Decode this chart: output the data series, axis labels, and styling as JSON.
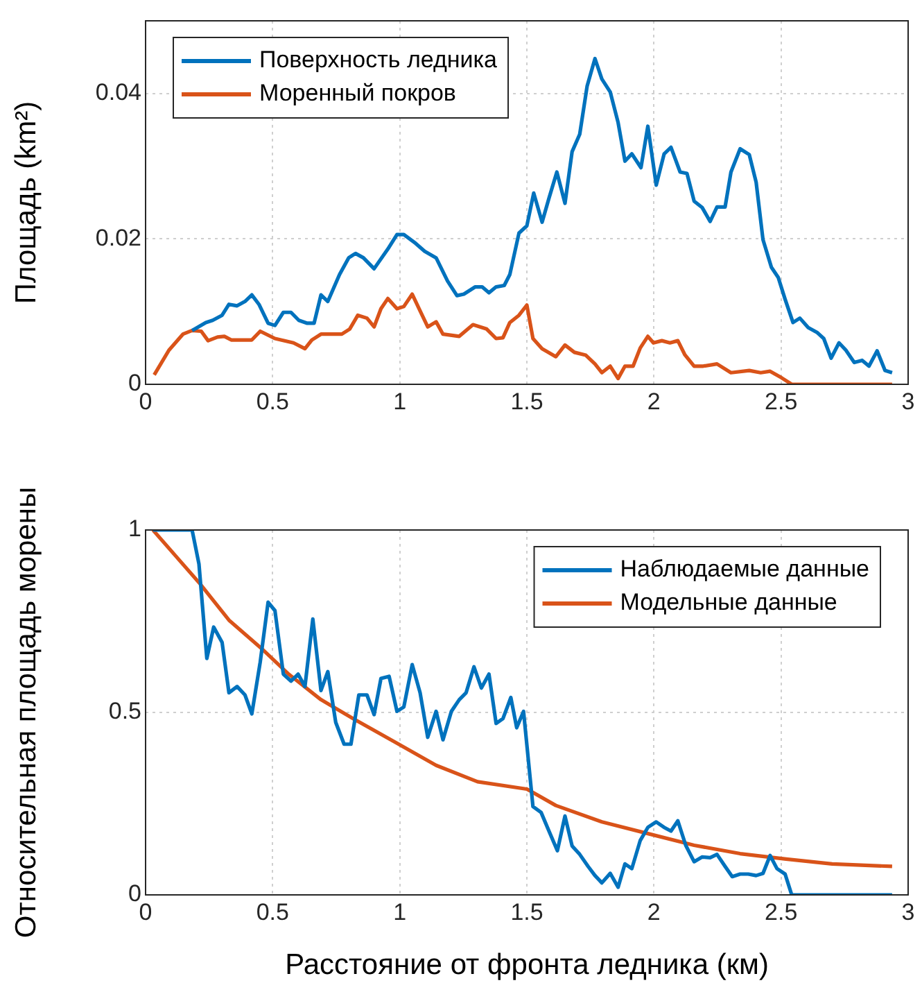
{
  "chart_data": [
    {
      "type": "line",
      "ylabel": "Площадь (km²)",
      "xlim": [
        0,
        3
      ],
      "xticks": [
        0,
        0.5,
        1,
        1.5,
        2,
        2.5,
        3
      ],
      "ylim": [
        0,
        0.05
      ],
      "yticks": [
        0,
        0.02,
        0.04
      ],
      "grid": true,
      "legend": "top left",
      "series": [
        {
          "name": "Поверхность ледника",
          "color": "#0072bd",
          "x": [
            0.183,
            0.237,
            0.264,
            0.301,
            0.328,
            0.36,
            0.391,
            0.418,
            0.446,
            0.482,
            0.509,
            0.542,
            0.572,
            0.603,
            0.636,
            0.663,
            0.69,
            0.717,
            0.763,
            0.799,
            0.826,
            0.857,
            0.899,
            0.953,
            0.989,
            1.016,
            1.062,
            1.098,
            1.143,
            1.188,
            1.225,
            1.252,
            1.297,
            1.324,
            1.351,
            1.379,
            1.411,
            1.433,
            1.469,
            1.5,
            1.527,
            1.56,
            1.587,
            1.618,
            1.65,
            1.678,
            1.708,
            1.737,
            1.768,
            1.795,
            1.828,
            1.859,
            1.886,
            1.913,
            1.949,
            1.976,
            2.009,
            2.04,
            2.067,
            2.103,
            2.13,
            2.158,
            2.19,
            2.221,
            2.248,
            2.28,
            2.303,
            2.339,
            2.375,
            2.402,
            2.429,
            2.462,
            2.489,
            2.516,
            2.547,
            2.574,
            2.607,
            2.643,
            2.668,
            2.697,
            2.728,
            2.755,
            2.788,
            2.819,
            2.846,
            2.878,
            2.909,
            2.937
          ],
          "values": [
            0.0074,
            0.0085,
            0.0088,
            0.0095,
            0.011,
            0.0108,
            0.0114,
            0.0123,
            0.011,
            0.0084,
            0.0081,
            0.0099,
            0.0099,
            0.0088,
            0.0084,
            0.0084,
            0.0123,
            0.0114,
            0.0151,
            0.0174,
            0.018,
            0.0174,
            0.0159,
            0.0186,
            0.0206,
            0.0206,
            0.0194,
            0.0183,
            0.0174,
            0.0142,
            0.0122,
            0.0124,
            0.0134,
            0.0134,
            0.0126,
            0.0134,
            0.0136,
            0.0151,
            0.0208,
            0.0218,
            0.0263,
            0.0223,
            0.0256,
            0.0292,
            0.0249,
            0.032,
            0.0344,
            0.041,
            0.0448,
            0.042,
            0.0402,
            0.036,
            0.0307,
            0.0317,
            0.0298,
            0.0355,
            0.0274,
            0.0317,
            0.0326,
            0.0292,
            0.029,
            0.0252,
            0.0243,
            0.0224,
            0.0244,
            0.0244,
            0.0292,
            0.0324,
            0.0316,
            0.0278,
            0.0199,
            0.0161,
            0.0147,
            0.0117,
            0.0085,
            0.0091,
            0.0078,
            0.0071,
            0.0063,
            0.0036,
            0.0057,
            0.0047,
            0.003,
            0.0033,
            0.0025,
            0.0046,
            0.0019,
            0.0016
          ]
        },
        {
          "name": "Моренный покров",
          "color": "#d95319",
          "x": [
            0.034,
            0.092,
            0.147,
            0.183,
            0.219,
            0.246,
            0.283,
            0.31,
            0.337,
            0.418,
            0.451,
            0.509,
            0.582,
            0.627,
            0.654,
            0.69,
            0.772,
            0.803,
            0.835,
            0.871,
            0.899,
            0.926,
            0.953,
            0.989,
            1.016,
            1.049,
            1.08,
            1.11,
            1.143,
            1.17,
            1.234,
            1.288,
            1.342,
            1.379,
            1.406,
            1.433,
            1.469,
            1.5,
            1.524,
            1.56,
            1.614,
            1.65,
            1.687,
            1.732,
            1.768,
            1.795,
            1.828,
            1.859,
            1.886,
            1.918,
            1.946,
            1.976,
            1.998,
            2.031,
            2.063,
            2.094,
            2.121,
            2.158,
            2.194,
            2.248,
            2.303,
            2.375,
            2.42,
            2.457,
            2.502,
            2.542,
            2.937
          ],
          "values": [
            0.0013,
            0.0047,
            0.0069,
            0.0074,
            0.0073,
            0.006,
            0.0065,
            0.0066,
            0.0061,
            0.0061,
            0.0073,
            0.0063,
            0.0057,
            0.0049,
            0.0061,
            0.0069,
            0.0069,
            0.0076,
            0.0095,
            0.0091,
            0.0079,
            0.0104,
            0.0118,
            0.0104,
            0.0107,
            0.0124,
            0.0101,
            0.0079,
            0.0086,
            0.0069,
            0.0066,
            0.0082,
            0.0076,
            0.0063,
            0.0064,
            0.0085,
            0.0095,
            0.0109,
            0.0063,
            0.0049,
            0.0038,
            0.0054,
            0.0044,
            0.004,
            0.0028,
            0.0016,
            0.0025,
            0.0008,
            0.0025,
            0.0025,
            0.005,
            0.0066,
            0.0057,
            0.006,
            0.0057,
            0.006,
            0.0041,
            0.0025,
            0.0025,
            0.0028,
            0.0016,
            0.0019,
            0.0016,
            0.0018,
            0.0009,
            0,
            0
          ]
        }
      ]
    },
    {
      "type": "line",
      "xlabel": "Расстояние от фронта ледника (км)",
      "ylabel": "Относительная площадь морены",
      "xlim": [
        0,
        3
      ],
      "xticks": [
        0,
        0.5,
        1,
        1.5,
        2,
        2.5,
        3
      ],
      "ylim": [
        0,
        1
      ],
      "yticks": [
        0,
        0.5,
        1
      ],
      "grid": true,
      "legend": "top right",
      "series": [
        {
          "name": "Наблюдаемые данные",
          "color": "#0072bd",
          "x": [
            0.029,
            0.183,
            0.21,
            0.241,
            0.268,
            0.301,
            0.328,
            0.36,
            0.391,
            0.418,
            0.451,
            0.482,
            0.509,
            0.542,
            0.572,
            0.6,
            0.627,
            0.658,
            0.69,
            0.717,
            0.748,
            0.781,
            0.808,
            0.839,
            0.871,
            0.899,
            0.926,
            0.958,
            0.989,
            1.016,
            1.049,
            1.08,
            1.11,
            1.143,
            1.17,
            1.203,
            1.234,
            1.261,
            1.292,
            1.321,
            1.351,
            1.379,
            1.406,
            1.437,
            1.46,
            1.487,
            1.524,
            1.556,
            1.587,
            1.62,
            1.65,
            1.678,
            1.708,
            1.741,
            1.768,
            1.795,
            1.828,
            1.859,
            1.886,
            1.913,
            1.946,
            1.976,
            2.009,
            2.04,
            2.067,
            2.094,
            2.125,
            2.158,
            2.19,
            2.221,
            2.248,
            2.28,
            2.308,
            2.339,
            2.371,
            2.402,
            2.429,
            2.457,
            2.484,
            2.516,
            2.542,
            2.937
          ],
          "values": [
            1,
            1,
            0.907,
            0.648,
            0.734,
            0.692,
            0.554,
            0.571,
            0.548,
            0.496,
            0.638,
            0.802,
            0.779,
            0.605,
            0.586,
            0.605,
            0.571,
            0.756,
            0.56,
            0.612,
            0.473,
            0.413,
            0.413,
            0.548,
            0.548,
            0.494,
            0.593,
            0.599,
            0.503,
            0.515,
            0.631,
            0.554,
            0.432,
            0.503,
            0.425,
            0.503,
            0.535,
            0.554,
            0.625,
            0.567,
            0.605,
            0.47,
            0.483,
            0.541,
            0.458,
            0.503,
            0.242,
            0.226,
            0.175,
            0.121,
            0.216,
            0.134,
            0.111,
            0.078,
            0.053,
            0.033,
            0.059,
            0.021,
            0.085,
            0.072,
            0.149,
            0.185,
            0.2,
            0.185,
            0.175,
            0.203,
            0.136,
            0.091,
            0.104,
            0.102,
            0.111,
            0.078,
            0.05,
            0.057,
            0.057,
            0.053,
            0.059,
            0.108,
            0.072,
            0.057,
            0,
            0
          ]
        },
        {
          "name": "Модельные данные",
          "color": "#d95319",
          "x": [
            0.029,
            0.21,
            0.328,
            0.455,
            0.563,
            0.69,
            0.817,
            0.98,
            1.143,
            1.306,
            1.5,
            1.614,
            1.795,
            1.976,
            2.158,
            2.339,
            2.52,
            2.701,
            2.937
          ],
          "values": [
            1,
            0.856,
            0.753,
            0.676,
            0.605,
            0.535,
            0.483,
            0.419,
            0.355,
            0.31,
            0.29,
            0.245,
            0.2,
            0.168,
            0.136,
            0.113,
            0.098,
            0.085,
            0.078
          ]
        }
      ]
    }
  ]
}
